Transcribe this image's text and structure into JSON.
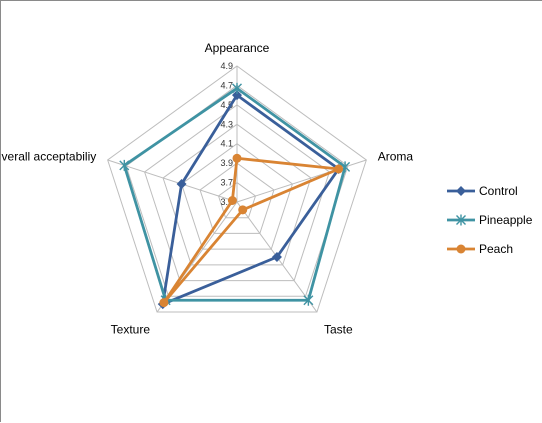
{
  "chart_data": {
    "type": "radar",
    "categories": [
      "Appearance",
      "Aroma",
      "Taste",
      "Texture",
      "Overall acceptabiliy"
    ],
    "ticks": [
      "3.5",
      "3.7",
      "3.9",
      "4.1",
      "4.3",
      "4.5",
      "4.7",
      "4.9"
    ],
    "rlim": [
      3.5,
      4.9
    ],
    "legend_position": "right",
    "grid": true,
    "series": [
      {
        "name": "Control",
        "color": "#3a5f9a",
        "marker": "diamond",
        "values": [
          4.6,
          4.6,
          4.2,
          4.8,
          4.1
        ]
      },
      {
        "name": "Pineapple",
        "color": "#3f93a3",
        "marker": "star",
        "values": [
          4.67,
          4.67,
          4.75,
          4.75,
          4.72
        ]
      },
      {
        "name": "Peach",
        "color": "#d98433",
        "marker": "circle",
        "values": [
          3.95,
          4.6,
          3.6,
          4.78,
          3.55
        ]
      }
    ]
  }
}
